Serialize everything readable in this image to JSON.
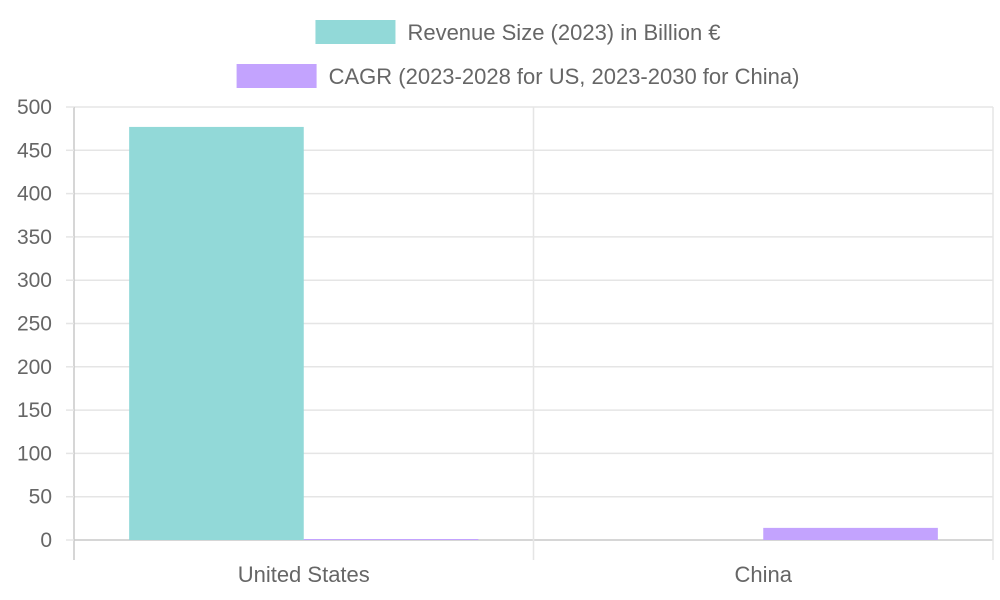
{
  "chart_data": {
    "type": "bar",
    "categories": [
      "United States",
      "China"
    ],
    "series": [
      {
        "name": "Revenue Size (2023) in Billion €",
        "values": [
          477,
          null
        ],
        "color": "#92d9d8"
      },
      {
        "name": "CAGR (2023-2028 for US, 2023-2030 for China)",
        "values": [
          0.5,
          14
        ],
        "color": "#c3a3fe"
      }
    ],
    "ylim": [
      0,
      500
    ],
    "yticks": [
      0,
      50,
      100,
      150,
      200,
      250,
      300,
      350,
      400,
      450,
      500
    ],
    "grid": true,
    "legend_position": "top",
    "colors": {
      "gridline": "#e5e5e5",
      "axis": "#c8c8c8",
      "text": "#666666"
    }
  }
}
